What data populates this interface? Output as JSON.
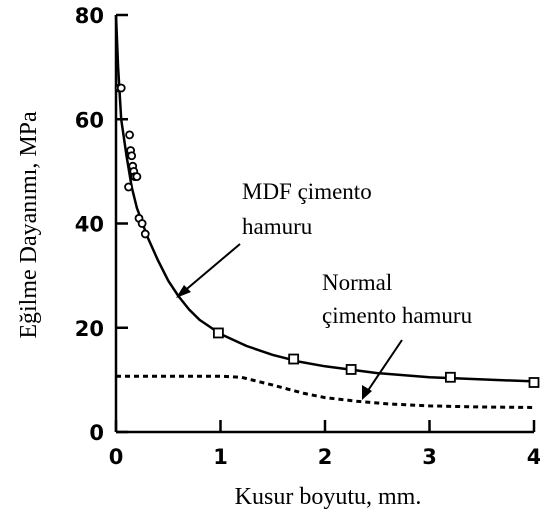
{
  "chart_data": {
    "type": "scatter",
    "xlabel": "Kusur boyutu, mm.",
    "ylabel": "Eğilme Dayanımı, MPa",
    "xlim": [
      0,
      4
    ],
    "ylim": [
      0,
      80
    ],
    "xticks": [
      "0",
      "1",
      "2",
      "3",
      "4"
    ],
    "yticks": [
      "0",
      "20",
      "40",
      "60",
      "80"
    ],
    "grid": false,
    "series": [
      {
        "name": "MDF çimento hamuru",
        "marker": "circle",
        "x": [
          0.03,
          0.05,
          0.12,
          0.13,
          0.14,
          0.15,
          0.16,
          0.17,
          0.18,
          0.2,
          0.22,
          0.25,
          0.28
        ],
        "y": [
          66,
          66,
          47,
          57,
          54,
          53,
          51,
          50,
          49,
          49,
          41,
          40,
          38
        ]
      },
      {
        "name": "MDF çimento hamuru",
        "marker": "square",
        "x": [
          0.98,
          1.7,
          2.25,
          3.2,
          4.0
        ],
        "y": [
          19,
          14,
          12,
          10.5,
          9.5
        ]
      }
    ],
    "curves": [
      {
        "name": "MDF çimento hamuru",
        "style": "solid",
        "x": [
          0.0,
          0.02,
          0.05,
          0.1,
          0.15,
          0.2,
          0.3,
          0.4,
          0.5,
          0.6,
          0.7,
          0.8,
          1.0,
          1.25,
          1.5,
          1.75,
          2.0,
          2.5,
          3.0,
          3.5,
          4.0
        ],
        "y": [
          80,
          70,
          60,
          53,
          47,
          43,
          37.5,
          33,
          29,
          26,
          23.5,
          21.5,
          18.8,
          16.5,
          14.8,
          13.5,
          12.6,
          11.3,
          10.5,
          10.1,
          9.7
        ]
      },
      {
        "name": "Normal çimento hamuru",
        "style": "dashed",
        "x": [
          0.0,
          0.5,
          1.0,
          1.2,
          1.5,
          1.8,
          2.0,
          2.3,
          2.6,
          3.0,
          3.5,
          4.0
        ],
        "y": [
          10.7,
          10.7,
          10.7,
          10.5,
          9.0,
          7.4,
          6.6,
          5.9,
          5.4,
          5.0,
          4.8,
          4.7
        ]
      }
    ],
    "annotations": [
      {
        "line1": "MDF çimento",
        "line2": "hamuru"
      },
      {
        "line1": "Normal",
        "line2": "çimento hamuru"
      }
    ]
  }
}
